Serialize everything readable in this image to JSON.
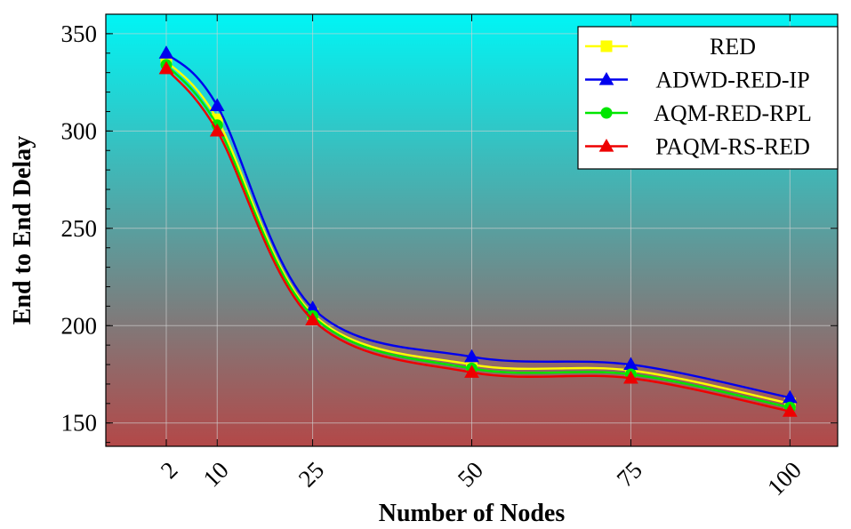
{
  "chart_data": {
    "type": "line",
    "title": "",
    "xlabel": "Number of Nodes",
    "ylabel": "End to End Delay",
    "x": [
      2,
      10,
      25,
      50,
      75,
      100
    ],
    "x_tick_labels": [
      "2",
      "10",
      "25",
      "50",
      "75",
      "100"
    ],
    "xlim": [
      -7.5,
      107.5
    ],
    "ylim": [
      138,
      360
    ],
    "y_ticks": [
      150,
      200,
      250,
      300,
      350
    ],
    "y_tick_labels": [
      "150",
      "200",
      "250",
      "300",
      "350"
    ],
    "grid": true,
    "legend_position": "top-right",
    "background_gradient": [
      "#00f5f5",
      "#b34848"
    ],
    "series": [
      {
        "name": "RED",
        "color": "#ffff00",
        "marker": "square",
        "values": [
          336,
          306,
          206,
          180,
          177,
          160
        ]
      },
      {
        "name": "ADWD-RED-IP",
        "color": "#0000ee",
        "marker": "triangle",
        "values": [
          340,
          313,
          209,
          184,
          180,
          163
        ]
      },
      {
        "name": "AQM-RED-RPL",
        "color": "#00e600",
        "marker": "circle",
        "values": [
          334,
          303,
          205,
          178,
          175,
          158
        ]
      },
      {
        "name": "PAQM-RS-RED",
        "color": "#ee0000",
        "marker": "triangle",
        "values": [
          332,
          300,
          203,
          176,
          173,
          156
        ]
      }
    ]
  }
}
